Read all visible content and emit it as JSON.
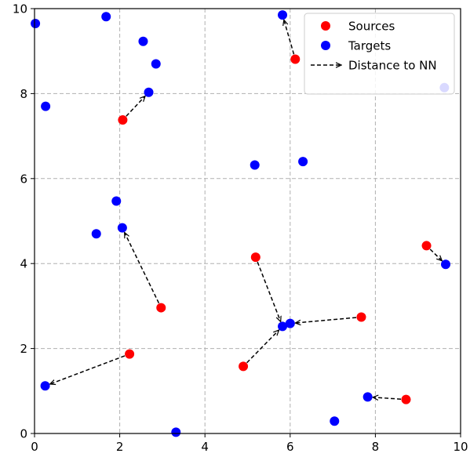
{
  "chart_data": {
    "type": "scatter",
    "title": "",
    "xlabel": "",
    "ylabel": "",
    "xlim": [
      0,
      10
    ],
    "ylim": [
      0,
      10
    ],
    "xticks": [
      "0",
      "2",
      "4",
      "6",
      "8",
      "10"
    ],
    "yticks": [
      "0",
      "2",
      "4",
      "6",
      "8",
      "10"
    ],
    "grid": true,
    "legend_position": "top-right",
    "legend": {
      "sources_label": "Sources",
      "targets_label": "Targets",
      "arrows_label": "Distance to NN"
    },
    "colors": {
      "sources": "#ff0000",
      "targets": "#0000ff",
      "arrows": "#000000",
      "grid": "#b0b0b0"
    },
    "sources": [
      {
        "x": 2.07,
        "y": 7.38
      },
      {
        "x": 6.12,
        "y": 8.81
      },
      {
        "x": 2.97,
        "y": 2.96
      },
      {
        "x": 2.23,
        "y": 1.87
      },
      {
        "x": 5.19,
        "y": 4.15
      },
      {
        "x": 4.9,
        "y": 1.58
      },
      {
        "x": 7.67,
        "y": 2.74
      },
      {
        "x": 9.2,
        "y": 4.42
      },
      {
        "x": 8.72,
        "y": 0.8
      }
    ],
    "targets": [
      {
        "x": 0.02,
        "y": 9.65
      },
      {
        "x": 1.68,
        "y": 9.81
      },
      {
        "x": 5.82,
        "y": 9.85
      },
      {
        "x": 2.55,
        "y": 9.23
      },
      {
        "x": 2.85,
        "y": 8.7
      },
      {
        "x": 0.26,
        "y": 7.7
      },
      {
        "x": 2.68,
        "y": 8.03
      },
      {
        "x": 9.62,
        "y": 8.14
      },
      {
        "x": 5.17,
        "y": 6.32
      },
      {
        "x": 6.3,
        "y": 6.4
      },
      {
        "x": 1.92,
        "y": 5.47
      },
      {
        "x": 1.45,
        "y": 4.7
      },
      {
        "x": 2.06,
        "y": 4.84
      },
      {
        "x": 9.65,
        "y": 3.98
      },
      {
        "x": 5.82,
        "y": 2.52
      },
      {
        "x": 6.0,
        "y": 2.59
      },
      {
        "x": 0.25,
        "y": 1.12
      },
      {
        "x": 7.82,
        "y": 0.86
      },
      {
        "x": 7.04,
        "y": 0.29
      },
      {
        "x": 3.32,
        "y": 0.03
      }
    ],
    "arrows": [
      {
        "from": [
          2.07,
          7.38
        ],
        "to": [
          2.68,
          8.03
        ]
      },
      {
        "from": [
          6.12,
          8.81
        ],
        "to": [
          5.82,
          9.85
        ]
      },
      {
        "from": [
          2.97,
          2.96
        ],
        "to": [
          2.06,
          4.84
        ]
      },
      {
        "from": [
          2.23,
          1.87
        ],
        "to": [
          0.25,
          1.12
        ]
      },
      {
        "from": [
          5.19,
          4.15
        ],
        "to": [
          5.82,
          2.52
        ]
      },
      {
        "from": [
          4.9,
          1.58
        ],
        "to": [
          5.82,
          2.52
        ]
      },
      {
        "from": [
          7.67,
          2.74
        ],
        "to": [
          6.0,
          2.59
        ]
      },
      {
        "from": [
          9.2,
          4.42
        ],
        "to": [
          9.65,
          3.98
        ]
      },
      {
        "from": [
          8.72,
          0.8
        ],
        "to": [
          7.82,
          0.86
        ]
      }
    ]
  }
}
